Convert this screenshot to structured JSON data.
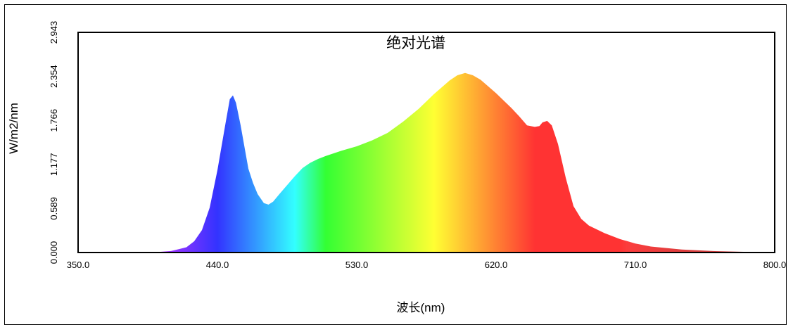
{
  "chart_data": {
    "type": "area",
    "title": "绝对光谱",
    "xlabel": "波长(nm)",
    "ylabel": "W/m2/nm",
    "xlim": [
      350,
      800
    ],
    "ylim": [
      0,
      2.943
    ],
    "x_ticks": [
      "350.0",
      "440.0",
      "530.0",
      "620.0",
      "710.0",
      "800.0"
    ],
    "y_ticks": [
      "0.000",
      "0.589",
      "1.177",
      "1.766",
      "2.354",
      "2.943"
    ],
    "grid": false,
    "fill": "spectral-color-by-wavelength",
    "x": [
      350,
      380,
      400,
      410,
      420,
      425,
      430,
      435,
      440,
      445,
      448,
      450,
      452,
      455,
      458,
      460,
      463,
      466,
      470,
      473,
      476,
      480,
      485,
      490,
      495,
      500,
      505,
      510,
      520,
      530,
      540,
      550,
      560,
      570,
      580,
      590,
      595,
      600,
      605,
      610,
      620,
      630,
      635,
      640,
      645,
      648,
      650,
      653,
      656,
      660,
      665,
      670,
      675,
      680,
      690,
      700,
      710,
      720,
      740,
      760,
      780,
      800
    ],
    "y": [
      0.0,
      0.0,
      0.005,
      0.02,
      0.07,
      0.15,
      0.3,
      0.6,
      1.1,
      1.7,
      2.05,
      2.1,
      2.0,
      1.7,
      1.35,
      1.12,
      0.93,
      0.78,
      0.66,
      0.64,
      0.68,
      0.78,
      0.9,
      1.02,
      1.13,
      1.2,
      1.25,
      1.29,
      1.36,
      1.42,
      1.5,
      1.6,
      1.75,
      1.92,
      2.12,
      2.3,
      2.37,
      2.4,
      2.37,
      2.31,
      2.13,
      1.93,
      1.82,
      1.7,
      1.68,
      1.69,
      1.74,
      1.76,
      1.7,
      1.45,
      1.0,
      0.62,
      0.45,
      0.36,
      0.26,
      0.18,
      0.12,
      0.08,
      0.04,
      0.02,
      0.01,
      0.005
    ]
  }
}
